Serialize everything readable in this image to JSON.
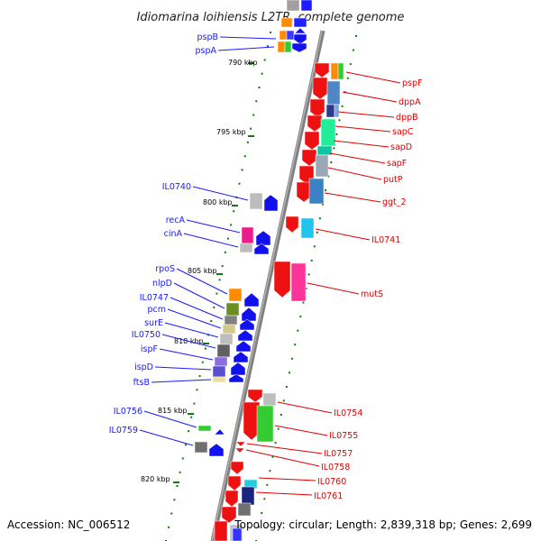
{
  "title": "Idiomarina loihiensis L2TR, complete genome",
  "footer": {
    "accession": "Accession: NC_006512",
    "topology": "Topology: circular; Length: 2,839,318 bp; Genes: 2,699"
  },
  "scale_labels": [
    "790 kbp",
    "795 kbp",
    "800 kbp",
    "805 kbp",
    "810 kbp",
    "815 kbp",
    "820 kbp"
  ],
  "left_genes": [
    "pspB",
    "pspA",
    "IL0740",
    "recA",
    "cinA",
    "rpoS",
    "nlpD",
    "IL0747",
    "pcm",
    "surE",
    "IL0750",
    "ispF",
    "ispD",
    "ftsB",
    "IL0756",
    "IL0759"
  ],
  "right_genes": [
    "pspF",
    "dppA",
    "dppB",
    "sapC",
    "sapD",
    "sapF",
    "putP",
    "ggt_2",
    "IL0741",
    "mutS",
    "IL0754",
    "IL0755",
    "IL0757",
    "IL0758",
    "IL0760",
    "IL0761"
  ],
  "colors": {
    "forward_label": "#1a1aff",
    "reverse_label": "#e00000",
    "backbone": "#777777",
    "tick": "#117711"
  }
}
